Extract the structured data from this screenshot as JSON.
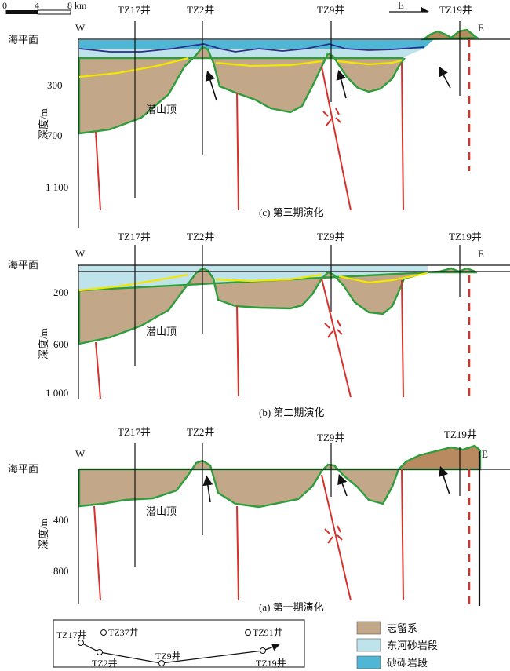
{
  "scale": {
    "ticks": [
      "0",
      "4",
      "8 km"
    ]
  },
  "direction": {
    "label": "E"
  },
  "common": {
    "sea_level": "海平面",
    "depth_axis": "深度/m",
    "west": "W",
    "east": "E",
    "buried_hill": "潜山顶"
  },
  "panel_c": {
    "caption": "(c) 第三期演化",
    "wells": [
      "TZ17井",
      "TZ2井",
      "TZ9井",
      "TZ19井"
    ],
    "depth_ticks": [
      "300",
      "700",
      "1 100"
    ]
  },
  "panel_b": {
    "caption": "(b) 第二期演化",
    "wells": [
      "TZ17井",
      "TZ2井",
      "TZ9井",
      "TZ19井"
    ],
    "depth_ticks": [
      "200",
      "600",
      "1 000"
    ]
  },
  "panel_a": {
    "caption": "(a) 第一期演化",
    "wells": [
      "TZ17井",
      "TZ2井",
      "TZ9井",
      "TZ19井"
    ],
    "depth_ticks": [
      "400",
      "800"
    ]
  },
  "inset": {
    "wells": [
      "TZ17井",
      "TZ37井",
      "TZ2井",
      "TZ9井",
      "TZ91井",
      "TZ19井"
    ]
  },
  "legend": [
    {
      "label": "志留系",
      "color": "#c2a888"
    },
    {
      "label": "东河砂岩段",
      "color": "#bfe3ea"
    },
    {
      "label": "砂砾岩段",
      "color": "#4fb6d6"
    }
  ]
}
